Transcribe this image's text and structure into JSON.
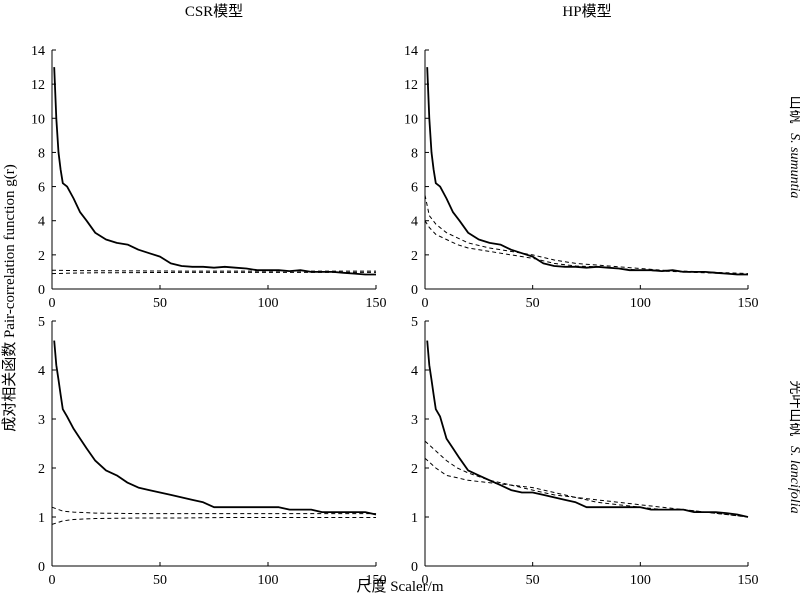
{
  "figure": {
    "col_titles": [
      "CSR模型",
      "HP模型"
    ],
    "row_labels": [
      {
        "cn": "山矾",
        "sci": "S. sumuntia"
      },
      {
        "cn": "光叶山矾",
        "sci": "S. lancifolia"
      }
    ],
    "ylabel": "成对相关函数 Pair-correlation function g(r)",
    "xlabel": "尺度 Scaler/m"
  },
  "chart_data": [
    {
      "type": "line",
      "panel": "top-left",
      "title": "CSR模型",
      "xlabel": "",
      "ylabel": "",
      "xlim": [
        0,
        150
      ],
      "ylim": [
        0,
        14
      ],
      "xticks": [
        0,
        50,
        100,
        150
      ],
      "yticks": [
        0,
        2,
        4,
        6,
        8,
        10,
        12,
        14
      ],
      "grid": false,
      "series": [
        {
          "style": "solid",
          "x": [
            1,
            2,
            3,
            4,
            5,
            7,
            10,
            13,
            16,
            20,
            25,
            30,
            35,
            40,
            45,
            50,
            55,
            60,
            65,
            70,
            75,
            80,
            85,
            90,
            95,
            100,
            105,
            110,
            115,
            120,
            125,
            130,
            135,
            140,
            145,
            150
          ],
          "y": [
            13,
            10,
            8,
            7,
            6.2,
            6.0,
            5.3,
            4.5,
            4.0,
            3.3,
            2.9,
            2.7,
            2.6,
            2.3,
            2.1,
            1.9,
            1.5,
            1.35,
            1.3,
            1.3,
            1.25,
            1.3,
            1.25,
            1.2,
            1.1,
            1.1,
            1.1,
            1.05,
            1.1,
            1.0,
            1.0,
            1.0,
            0.95,
            0.9,
            0.85,
            0.85
          ]
        },
        {
          "style": "dashed",
          "x": [
            0,
            10,
            20,
            40,
            60,
            80,
            100,
            120,
            150
          ],
          "y": [
            1.1,
            1.08,
            1.07,
            1.06,
            1.05,
            1.05,
            1.05,
            1.05,
            1.05
          ]
        },
        {
          "style": "dashed",
          "x": [
            0,
            10,
            20,
            40,
            60,
            80,
            100,
            120,
            150
          ],
          "y": [
            0.9,
            0.93,
            0.95,
            0.96,
            0.97,
            0.97,
            0.97,
            0.97,
            0.97
          ]
        }
      ]
    },
    {
      "type": "line",
      "panel": "top-right",
      "title": "HP模型",
      "xlabel": "",
      "ylabel": "",
      "xlim": [
        0,
        150
      ],
      "ylim": [
        0,
        14
      ],
      "xticks": [
        0,
        50,
        100,
        150
      ],
      "yticks": [
        0,
        2,
        4,
        6,
        8,
        10,
        12,
        14
      ],
      "grid": false,
      "series": [
        {
          "style": "solid",
          "x": [
            1,
            2,
            3,
            4,
            5,
            7,
            10,
            13,
            16,
            20,
            25,
            30,
            35,
            40,
            45,
            50,
            55,
            60,
            65,
            70,
            75,
            80,
            85,
            90,
            95,
            100,
            105,
            110,
            115,
            120,
            125,
            130,
            135,
            140,
            145,
            150
          ],
          "y": [
            13,
            10,
            8,
            7,
            6.2,
            6.0,
            5.3,
            4.5,
            4.0,
            3.3,
            2.9,
            2.7,
            2.6,
            2.3,
            2.1,
            1.9,
            1.5,
            1.35,
            1.3,
            1.3,
            1.25,
            1.3,
            1.25,
            1.2,
            1.1,
            1.1,
            1.1,
            1.05,
            1.1,
            1.0,
            1.0,
            1.0,
            0.95,
            0.9,
            0.85,
            0.85
          ]
        },
        {
          "style": "dashed",
          "x": [
            0,
            2,
            5,
            10,
            15,
            20,
            30,
            40,
            50,
            60,
            70,
            80,
            90,
            100,
            110,
            120,
            130,
            140,
            150
          ],
          "y": [
            5.5,
            4.3,
            3.8,
            3.3,
            3.0,
            2.7,
            2.4,
            2.2,
            2.0,
            1.7,
            1.5,
            1.4,
            1.3,
            1.2,
            1.1,
            1.05,
            1.0,
            0.95,
            0.9
          ]
        },
        {
          "style": "dashed",
          "x": [
            0,
            2,
            5,
            10,
            15,
            20,
            30,
            40,
            50,
            60,
            70,
            80,
            90,
            100,
            110,
            120,
            130,
            140,
            150
          ],
          "y": [
            4.0,
            3.6,
            3.2,
            2.9,
            2.6,
            2.4,
            2.2,
            2.0,
            1.8,
            1.5,
            1.35,
            1.3,
            1.2,
            1.1,
            1.05,
            1.0,
            0.95,
            0.9,
            0.85
          ]
        }
      ]
    },
    {
      "type": "line",
      "panel": "bottom-left",
      "xlabel": "",
      "ylabel": "",
      "xlim": [
        0,
        150
      ],
      "ylim": [
        0,
        5
      ],
      "xticks": [
        0,
        50,
        100,
        150
      ],
      "yticks": [
        0,
        1,
        2,
        3,
        4,
        5
      ],
      "grid": false,
      "series": [
        {
          "style": "solid",
          "x": [
            1,
            2,
            3,
            4,
            5,
            7,
            10,
            13,
            16,
            20,
            25,
            30,
            35,
            40,
            45,
            50,
            55,
            60,
            65,
            70,
            75,
            80,
            85,
            90,
            95,
            100,
            105,
            110,
            115,
            120,
            125,
            130,
            135,
            140,
            145,
            150
          ],
          "y": [
            4.6,
            4.1,
            3.8,
            3.5,
            3.2,
            3.05,
            2.8,
            2.6,
            2.4,
            2.15,
            1.95,
            1.85,
            1.7,
            1.6,
            1.55,
            1.5,
            1.45,
            1.4,
            1.35,
            1.3,
            1.2,
            1.2,
            1.2,
            1.2,
            1.2,
            1.2,
            1.2,
            1.15,
            1.15,
            1.15,
            1.1,
            1.1,
            1.1,
            1.1,
            1.1,
            1.05
          ]
        },
        {
          "style": "dashed",
          "x": [
            0,
            5,
            10,
            20,
            40,
            60,
            80,
            100,
            120,
            150
          ],
          "y": [
            1.2,
            1.12,
            1.1,
            1.08,
            1.07,
            1.07,
            1.07,
            1.07,
            1.07,
            1.07
          ]
        },
        {
          "style": "dashed",
          "x": [
            0,
            5,
            10,
            20,
            40,
            60,
            80,
            100,
            120,
            150
          ],
          "y": [
            0.85,
            0.92,
            0.95,
            0.97,
            0.98,
            0.98,
            0.99,
            0.99,
            0.99,
            0.99
          ]
        }
      ]
    },
    {
      "type": "line",
      "panel": "bottom-right",
      "xlabel": "",
      "ylabel": "",
      "xlim": [
        0,
        150
      ],
      "ylim": [
        0,
        5
      ],
      "xticks": [
        0,
        50,
        100,
        150
      ],
      "yticks": [
        0,
        1,
        2,
        3,
        4,
        5
      ],
      "grid": false,
      "series": [
        {
          "style": "solid",
          "x": [
            1,
            2,
            3,
            4,
            5,
            7,
            10,
            13,
            16,
            20,
            25,
            30,
            35,
            40,
            45,
            50,
            55,
            60,
            65,
            70,
            75,
            80,
            85,
            90,
            95,
            100,
            105,
            110,
            115,
            120,
            125,
            130,
            135,
            140,
            145,
            150
          ],
          "y": [
            4.6,
            4.1,
            3.8,
            3.5,
            3.2,
            3.05,
            2.6,
            2.4,
            2.2,
            1.95,
            1.85,
            1.75,
            1.65,
            1.55,
            1.5,
            1.5,
            1.45,
            1.4,
            1.35,
            1.3,
            1.2,
            1.2,
            1.2,
            1.2,
            1.2,
            1.2,
            1.15,
            1.15,
            1.15,
            1.15,
            1.1,
            1.1,
            1.1,
            1.08,
            1.05,
            1.0
          ]
        },
        {
          "style": "dashed",
          "x": [
            0,
            5,
            10,
            15,
            20,
            30,
            40,
            50,
            60,
            70,
            80,
            90,
            100,
            110,
            120,
            130,
            140,
            150
          ],
          "y": [
            2.55,
            2.35,
            2.15,
            2.0,
            1.9,
            1.75,
            1.65,
            1.55,
            1.45,
            1.4,
            1.35,
            1.3,
            1.25,
            1.2,
            1.15,
            1.1,
            1.05,
            1.0
          ]
        },
        {
          "style": "dashed",
          "x": [
            0,
            5,
            10,
            15,
            20,
            30,
            40,
            50,
            60,
            70,
            80,
            90,
            100,
            110,
            120,
            130,
            140,
            150
          ],
          "y": [
            2.2,
            2.0,
            1.85,
            1.8,
            1.75,
            1.7,
            1.65,
            1.6,
            1.5,
            1.4,
            1.3,
            1.25,
            1.2,
            1.15,
            1.15,
            1.1,
            1.05,
            1.0
          ]
        }
      ]
    }
  ]
}
